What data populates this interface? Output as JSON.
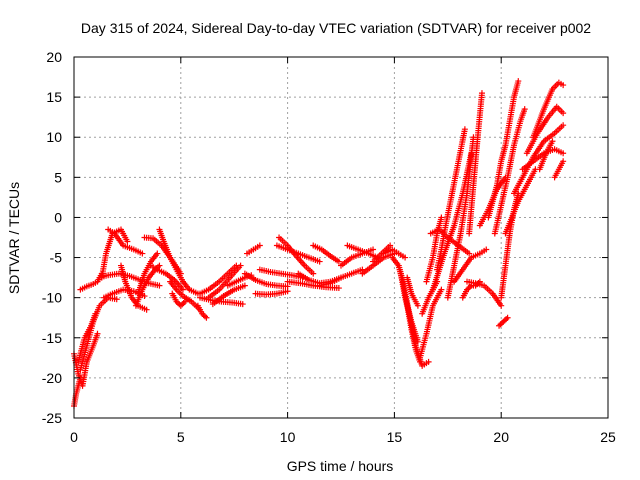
{
  "chart_data": {
    "type": "scatter",
    "title": "Day 315 of 2024, Sidereal Day-to-day VTEC variation (SDTVAR) for receiver p002",
    "xlabel": "GPS time / hours",
    "ylabel": "SDTVAR / TECUs",
    "xlim": [
      0,
      25
    ],
    "ylim": [
      -25,
      20
    ],
    "xticks": [
      0,
      5,
      10,
      15,
      20,
      25
    ],
    "yticks": [
      -25,
      -20,
      -15,
      -10,
      -5,
      0,
      5,
      10,
      15,
      20
    ],
    "grid": true,
    "marker": "+",
    "series": [
      {
        "name": "SDTVAR",
        "color": "#ff0000",
        "tracks": [
          {
            "x": [
              0.0,
              0.2,
              0.4,
              0.6,
              0.9,
              1.1
            ],
            "y": [
              -17.0,
              -19.5,
              -21.0,
              -18.0,
              -16.0,
              -14.5
            ]
          },
          {
            "x": [
              0.0,
              0.1,
              0.3
            ],
            "y": [
              -23.5,
              -22.0,
              -20.0
            ]
          },
          {
            "x": [
              0.3,
              0.6,
              0.9,
              1.2,
              1.6,
              2.0
            ],
            "y": [
              -19.0,
              -16.0,
              -13.0,
              -11.0,
              -10.0,
              -10.2
            ]
          },
          {
            "x": [
              0.2,
              0.5,
              0.8,
              1.0
            ],
            "y": [
              -18.0,
              -15.0,
              -13.5,
              -12.0
            ]
          },
          {
            "x": [
              0.3,
              0.6,
              0.9,
              1.1,
              1.3
            ],
            "y": [
              -9.0,
              -8.6,
              -8.3,
              -8.0,
              -7.0
            ]
          },
          {
            "x": [
              1.3,
              1.5,
              1.8,
              2.2,
              2.5
            ],
            "y": [
              -7.5,
              -4.5,
              -2.0,
              -1.5,
              -3.0
            ]
          },
          {
            "x": [
              1.6,
              1.9,
              2.3,
              2.8,
              3.2
            ],
            "y": [
              -1.5,
              -2.0,
              -3.5,
              -4.0,
              -4.5
            ]
          },
          {
            "x": [
              2.2,
              2.4,
              2.7,
              3.0,
              3.4
            ],
            "y": [
              -6.0,
              -8.0,
              -10.0,
              -11.0,
              -11.5
            ]
          },
          {
            "x": [
              1.2,
              1.6,
              2.1,
              2.6,
              3.1,
              3.5,
              4.0
            ],
            "y": [
              -7.5,
              -7.2,
              -7.0,
              -7.3,
              -7.8,
              -8.2,
              -8.5
            ]
          },
          {
            "x": [
              1.4,
              1.8,
              2.3,
              2.8,
              3.3
            ],
            "y": [
              -10.0,
              -9.5,
              -9.0,
              -9.2,
              -9.8
            ]
          },
          {
            "x": [
              2.9,
              3.2,
              3.5,
              3.8,
              4.0
            ],
            "y": [
              -11.0,
              -9.0,
              -7.5,
              -6.5,
              -6.0
            ]
          },
          {
            "x": [
              3.0,
              3.3,
              3.6,
              3.9
            ],
            "y": [
              -9.5,
              -7.0,
              -5.5,
              -4.5
            ]
          },
          {
            "x": [
              3.3,
              3.7,
              4.1,
              4.5,
              5.0
            ],
            "y": [
              -2.5,
              -2.6,
              -3.5,
              -5.0,
              -7.0
            ]
          },
          {
            "x": [
              4.0,
              4.2,
              4.5,
              4.8,
              5.1,
              5.4,
              5.8
            ],
            "y": [
              -1.5,
              -3.0,
              -5.0,
              -6.5,
              -8.0,
              -9.0,
              -9.5
            ]
          },
          {
            "x": [
              3.6,
              3.9,
              4.3,
              4.7,
              5.1
            ],
            "y": [
              -6.0,
              -6.5,
              -7.0,
              -7.8,
              -9.0
            ]
          },
          {
            "x": [
              4.5,
              4.8,
              5.1,
              5.5,
              5.9
            ],
            "y": [
              -8.0,
              -9.0,
              -9.8,
              -10.5,
              -11.5
            ]
          },
          {
            "x": [
              4.6,
              4.8,
              5.0,
              5.2
            ],
            "y": [
              -9.5,
              -10.5,
              -11.0,
              -10.5
            ]
          },
          {
            "x": [
              5.8,
              6.0,
              6.2
            ],
            "y": [
              -11.0,
              -12.0,
              -12.5
            ]
          },
          {
            "x": [
              5.9,
              6.4,
              6.9,
              7.4,
              7.9
            ],
            "y": [
              -10.0,
              -10.3,
              -10.5,
              -10.6,
              -10.8
            ]
          },
          {
            "x": [
              5.9,
              6.3,
              6.8,
              7.2,
              7.6
            ],
            "y": [
              -9.5,
              -9.0,
              -8.0,
              -7.0,
              -6.0
            ]
          },
          {
            "x": [
              6.3,
              6.8,
              7.3,
              7.8
            ],
            "y": [
              -10.0,
              -9.0,
              -7.5,
              -6.0
            ]
          },
          {
            "x": [
              6.5,
              7.0,
              7.5,
              8.0
            ],
            "y": [
              -10.8,
              -9.8,
              -9.0,
              -8.5
            ]
          },
          {
            "x": [
              7.2,
              7.6,
              8.0,
              8.3
            ],
            "y": [
              -8.5,
              -8.0,
              -7.5,
              -7.2
            ]
          },
          {
            "x": [
              8.0,
              8.5,
              9.0,
              9.5,
              10.0
            ],
            "y": [
              -7.0,
              -7.8,
              -8.3,
              -8.5,
              -8.6
            ]
          },
          {
            "x": [
              8.1,
              8.4,
              8.7
            ],
            "y": [
              -4.5,
              -4.0,
              -3.5
            ]
          },
          {
            "x": [
              8.5,
              9.0,
              9.5,
              10.0
            ],
            "y": [
              -9.5,
              -9.6,
              -9.5,
              -9.2
            ]
          },
          {
            "x": [
              8.7,
              9.2,
              9.7,
              10.2,
              10.7
            ],
            "y": [
              -6.5,
              -6.8,
              -7.0,
              -7.2,
              -7.5
            ]
          },
          {
            "x": [
              9.5,
              10.0,
              10.5,
              11.0,
              11.5
            ],
            "y": [
              -3.5,
              -4.0,
              -4.5,
              -5.0,
              -5.5
            ]
          },
          {
            "x": [
              9.6,
              10.0,
              10.4,
              10.8,
              11.2
            ],
            "y": [
              -2.5,
              -3.5,
              -4.8,
              -6.0,
              -7.0
            ]
          },
          {
            "x": [
              10.0,
              10.6,
              11.2,
              11.8,
              12.4
            ],
            "y": [
              -8.0,
              -8.2,
              -8.5,
              -8.7,
              -8.8
            ]
          },
          {
            "x": [
              10.5,
              11.0,
              11.5,
              12.0,
              12.5
            ],
            "y": [
              -7.0,
              -7.8,
              -8.2,
              -8.0,
              -7.5
            ]
          },
          {
            "x": [
              11.2,
              11.6,
              12.0,
              12.4
            ],
            "y": [
              -3.5,
              -4.0,
              -4.8,
              -5.5
            ]
          },
          {
            "x": [
              11.5,
              12.0,
              12.5,
              13.0,
              13.5
            ],
            "y": [
              -8.5,
              -8.2,
              -7.5,
              -7.0,
              -6.5
            ]
          },
          {
            "x": [
              12.5,
              13.0,
              13.5,
              14.0
            ],
            "y": [
              -6.0,
              -5.0,
              -4.5,
              -4.0
            ]
          },
          {
            "x": [
              12.8,
              13.3,
              13.8,
              14.2
            ],
            "y": [
              -3.5,
              -4.0,
              -4.5,
              -5.0
            ]
          },
          {
            "x": [
              13.5,
              14.0,
              14.5,
              15.0
            ],
            "y": [
              -7.0,
              -6.0,
              -5.0,
              -4.5
            ]
          },
          {
            "x": [
              14.0,
              14.4,
              14.8
            ],
            "y": [
              -5.5,
              -4.5,
              -3.5
            ]
          },
          {
            "x": [
              14.5,
              14.9,
              15.2,
              15.5
            ],
            "y": [
              -4.5,
              -4.0,
              -4.5,
              -5.0
            ]
          },
          {
            "x": [
              14.9,
              15.2,
              15.4,
              15.6,
              15.8,
              16.0,
              16.2
            ],
            "y": [
              -5.0,
              -6.0,
              -8.0,
              -11.0,
              -14.0,
              -16.5,
              -18.0
            ]
          },
          {
            "x": [
              15.2,
              15.4,
              15.7,
              16.0,
              16.3,
              16.6
            ],
            "y": [
              -6.0,
              -8.0,
              -12.0,
              -16.0,
              -18.5,
              -18.0
            ]
          },
          {
            "x": [
              15.3,
              15.5,
              15.8,
              16.1
            ],
            "y": [
              -7.0,
              -10.0,
              -13.0,
              -15.5
            ]
          },
          {
            "x": [
              15.6,
              15.8,
              16.1
            ],
            "y": [
              -7.5,
              -9.5,
              -11.0
            ]
          },
          {
            "x": [
              16.2,
              16.5,
              16.8,
              17.2
            ],
            "y": [
              -17.5,
              -14.5,
              -11.0,
              -9.0
            ]
          },
          {
            "x": [
              16.3,
              16.6,
              17.0
            ],
            "y": [
              -12.0,
              -10.0,
              -8.0
            ]
          },
          {
            "x": [
              16.7,
              17.1,
              17.5,
              18.0,
              18.5
            ],
            "y": [
              -2.0,
              -1.5,
              -2.5,
              -3.5,
              -4.5
            ]
          },
          {
            "x": [
              16.5,
              16.8,
              17.0,
              17.2
            ],
            "y": [
              -8.0,
              -5.0,
              -2.0,
              0.0
            ]
          },
          {
            "x": [
              16.8,
              17.1,
              17.4,
              17.8,
              18.2,
              18.6
            ],
            "y": [
              -9.0,
              -6.5,
              -4.0,
              -1.0,
              3.0,
              8.0
            ]
          },
          {
            "x": [
              17.0,
              17.2,
              17.4,
              17.7,
              18.0,
              18.3
            ],
            "y": [
              -6.5,
              -4.0,
              -1.0,
              3.0,
              7.0,
              11.0
            ]
          },
          {
            "x": [
              17.5,
              17.8,
              18.1,
              18.4,
              18.7
            ],
            "y": [
              -10.0,
              -6.0,
              -2.0,
              3.0,
              10.0
            ]
          },
          {
            "x": [
              17.8,
              18.2,
              18.6,
              19.0,
              19.3
            ],
            "y": [
              -8.0,
              -6.5,
              -5.0,
              -4.5,
              -4.0
            ]
          },
          {
            "x": [
              18.2,
              18.4,
              18.6,
              18.8,
              19.0
            ],
            "y": [
              -10.0,
              -9.0,
              -8.5,
              -8.5,
              -8.0
            ]
          },
          {
            "x": [
              18.5,
              18.7,
              18.9,
              19.1
            ],
            "y": [
              -2.0,
              4.0,
              10.0,
              15.5
            ]
          },
          {
            "x": [
              18.4,
              18.8,
              19.2,
              19.6,
              20.0
            ],
            "y": [
              -8.0,
              -8.2,
              -8.5,
              -9.5,
              -11.0
            ]
          },
          {
            "x": [
              19.0,
              19.4,
              19.8,
              20.2
            ],
            "y": [
              -1.0,
              1.0,
              3.5,
              5.0
            ]
          },
          {
            "x": [
              19.4,
              19.6,
              19.8,
              20.0,
              20.2,
              20.4,
              20.6,
              20.8
            ],
            "y": [
              0.0,
              2.0,
              4.0,
              7.0,
              9.0,
              12.0,
              15.0,
              17.0
            ]
          },
          {
            "x": [
              19.7,
              20.0,
              20.3,
              20.6,
              20.9,
              21.1
            ],
            "y": [
              -2.0,
              1.5,
              5.0,
              9.0,
              12.0,
              13.5
            ]
          },
          {
            "x": [
              20.0,
              20.2,
              20.4,
              20.6,
              20.8
            ],
            "y": [
              -10.0,
              -6.0,
              -2.0,
              1.0,
              3.0
            ]
          },
          {
            "x": [
              19.9,
              20.1,
              20.3
            ],
            "y": [
              -13.5,
              -13.0,
              -12.5
            ]
          },
          {
            "x": [
              20.2,
              20.5,
              20.8,
              21.2,
              21.6
            ],
            "y": [
              -2.0,
              0.0,
              2.0,
              4.0,
              6.0
            ]
          },
          {
            "x": [
              20.6,
              21.0,
              21.5,
              22.0,
              22.5,
              22.9
            ],
            "y": [
              3.0,
              5.0,
              7.5,
              9.5,
              10.5,
              11.5
            ]
          },
          {
            "x": [
              21.0,
              21.5,
              22.0,
              22.5,
              22.9
            ],
            "y": [
              6.0,
              7.0,
              8.0,
              8.5,
              8.0
            ]
          },
          {
            "x": [
              21.5,
              22.0,
              22.4,
              22.7,
              22.9
            ],
            "y": [
              10.0,
              13.5,
              16.0,
              16.8,
              16.5
            ]
          },
          {
            "x": [
              21.2,
              21.7,
              22.2,
              22.6,
              22.9
            ],
            "y": [
              8.0,
              10.5,
              12.5,
              13.8,
              13.0
            ]
          },
          {
            "x": [
              21.8,
              22.1,
              22.4
            ],
            "y": [
              6.0,
              8.0,
              9.5
            ]
          },
          {
            "x": [
              22.5,
              22.7,
              22.9
            ],
            "y": [
              5.0,
              6.0,
              7.0
            ]
          }
        ]
      }
    ]
  }
}
